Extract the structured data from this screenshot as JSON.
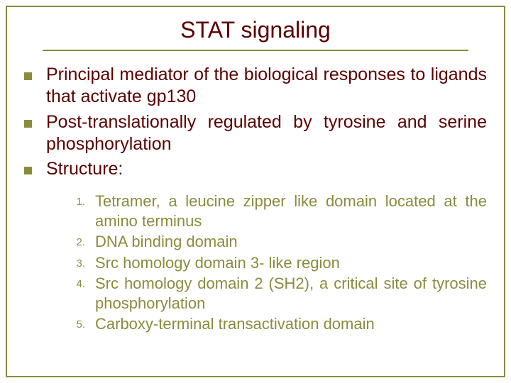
{
  "colors": {
    "frame_border": "#8b8b3e",
    "title_color": "#5a0000",
    "title_underline": "#8b8b3e",
    "bullet_square": "#8b8b3e",
    "main_text": "#5a0000",
    "sub_num": "#8b8b3e",
    "sub_text": "#8b8b3e"
  },
  "title": "STAT signaling",
  "main_items": [
    "Principal mediator of the biological responses to ligands that activate  gp130",
    "Post-translationally regulated by tyrosine and serine phosphorylation",
    "Structure:"
  ],
  "sub_items": [
    {
      "n": "1.",
      "t": "Tetramer, a leucine zipper like domain located at the amino terminus"
    },
    {
      "n": "2.",
      "t": "DNA binding domain"
    },
    {
      "n": "3.",
      "t": "Src homology domain 3- like region"
    },
    {
      "n": "4.",
      "t": "Src homology domain 2 (SH2), a critical site of tyrosine phosphorylation"
    },
    {
      "n": "5.",
      "t": "Carboxy-terminal transactivation domain"
    }
  ]
}
